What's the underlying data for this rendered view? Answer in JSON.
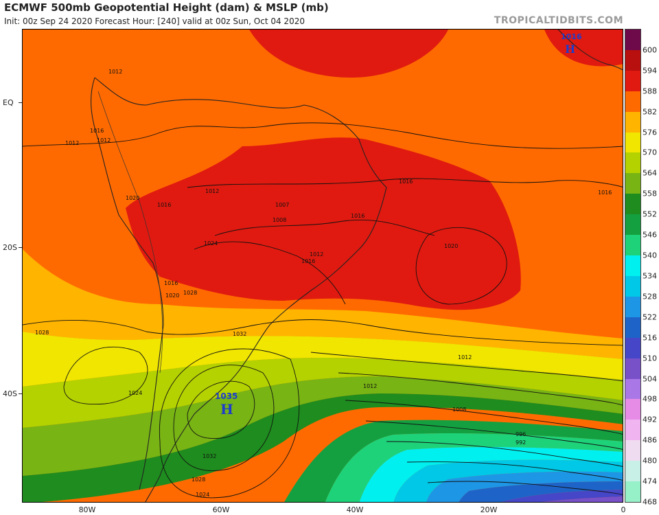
{
  "header": {
    "title": "ECMWF 500mb Geopotential Height (dam) & MSLP (mb)",
    "subtitle": "Init: 00z Sep 24 2020   Forecast Hour: [240]   valid at 00z Sun, Oct 04 2020",
    "brand": "TROPICALTIDBITS.COM"
  },
  "axes": {
    "lat_labels": [
      "EQ",
      "20S",
      "40S"
    ],
    "lon_labels": [
      "80W",
      "60W",
      "40W",
      "20W",
      "0"
    ]
  },
  "colorbar": {
    "labels": [
      "600",
      "594",
      "588",
      "582",
      "576",
      "570",
      "564",
      "558",
      "552",
      "546",
      "540",
      "534",
      "528",
      "522",
      "516",
      "510",
      "504",
      "498",
      "492",
      "486",
      "480",
      "474",
      "468"
    ],
    "colors": [
      "#6e0a4a",
      "#b80f0f",
      "#e01a10",
      "#ff6a00",
      "#ffb400",
      "#f0e600",
      "#b4d200",
      "#78b414",
      "#1e8c1e",
      "#14a040",
      "#1ed27a",
      "#00f0f0",
      "#00c8e6",
      "#1e96e6",
      "#1e64c8",
      "#4646c8",
      "#7850c8",
      "#aa78e6",
      "#e68ce6",
      "#f0b4f0",
      "#f0dcf0",
      "#c8f0e6",
      "#96f0c8"
    ]
  },
  "pressure_centers": [
    {
      "label": "1035",
      "letter": "H",
      "color": "#1e3ccc"
    },
    {
      "label": "1016",
      "letter": "H",
      "color": "#1e3ccc"
    }
  ],
  "isobar_labels": [
    "1012",
    "1016",
    "1012",
    "1012",
    "1020",
    "1016",
    "1012",
    "1007",
    "1008",
    "1016",
    "1016",
    "1020",
    "1024",
    "1012",
    "1016",
    "1016",
    "1028",
    "1032",
    "1028",
    "1024",
    "1012",
    "1008",
    "1012",
    "996",
    "992",
    "1032",
    "1028",
    "1024",
    "1020",
    "1016"
  ]
}
